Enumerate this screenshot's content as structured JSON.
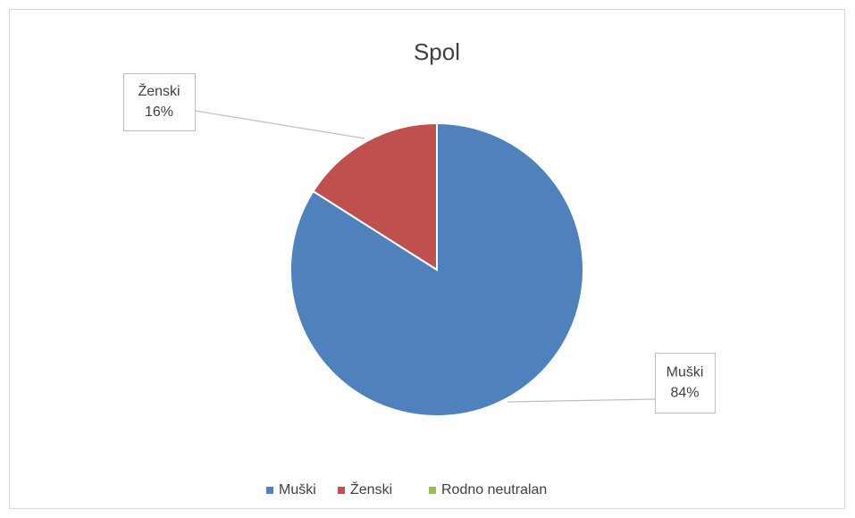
{
  "chart_data": {
    "type": "pie",
    "title": "Spol",
    "categories": [
      "Muški",
      "Ženski",
      "Rodno neutralan"
    ],
    "values": [
      84,
      16,
      0
    ],
    "value_labels": [
      "84%",
      "16%",
      null
    ],
    "colors": [
      "#4f81bd",
      "#c0504d",
      "#9bbb59"
    ],
    "legend": "bottom"
  }
}
